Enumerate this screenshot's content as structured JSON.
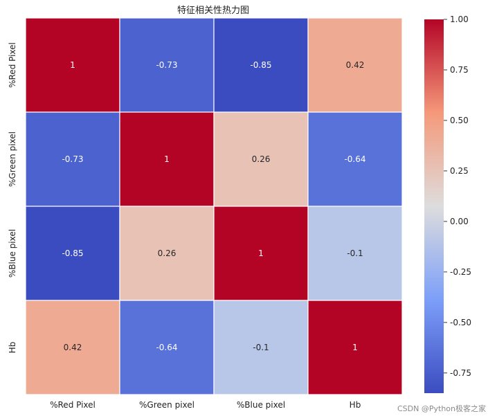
{
  "chart_data": {
    "type": "heatmap",
    "title": "特征相关性热力图",
    "row_labels": [
      "%Red Pixel",
      "%Green pixel",
      "%Blue pixel",
      "Hb"
    ],
    "col_labels": [
      "%Red Pixel",
      "%Green pixel",
      "%Blue pixel",
      "Hb"
    ],
    "values": [
      [
        1,
        -0.73,
        -0.85,
        0.42
      ],
      [
        -0.73,
        1,
        0.26,
        -0.64
      ],
      [
        -0.85,
        0.26,
        1,
        -0.1
      ],
      [
        0.42,
        -0.64,
        -0.1,
        1
      ]
    ],
    "cell_labels": [
      [
        "1",
        "-0.73",
        "-0.85",
        "0.42"
      ],
      [
        "-0.73",
        "1",
        "0.26",
        "-0.64"
      ],
      [
        "-0.85",
        "0.26",
        "1",
        "-0.1"
      ],
      [
        "0.42",
        "-0.64",
        "-0.1",
        "1"
      ]
    ],
    "colormap": "coolwarm",
    "colorbar": {
      "vmin": -0.85,
      "vmax": 1.0,
      "ticks": [
        1.0,
        0.75,
        0.5,
        0.25,
        0.0,
        -0.25,
        -0.5,
        -0.75
      ],
      "tick_labels": [
        "1.00",
        "0.75",
        "0.50",
        "0.25",
        "0.00",
        "-0.25",
        "-0.50",
        "-0.75"
      ]
    }
  },
  "watermark": "CSDN @Python极客之家"
}
